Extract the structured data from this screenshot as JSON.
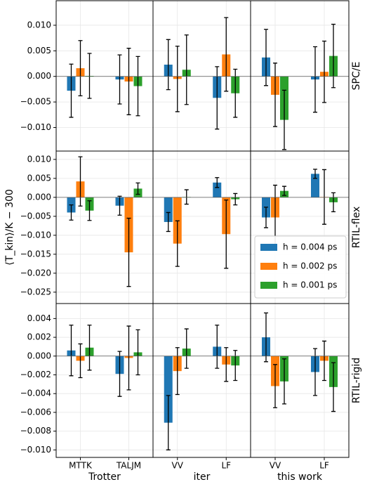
{
  "chart_data": [
    {
      "type": "bar",
      "categories": [
        null,
        null
      ],
      "ylim": [
        -0.0146,
        0.0148
      ],
      "yticks": [
        {
          "value": -0.01,
          "label": "−0.010"
        },
        {
          "value": -0.005,
          "label": "−0.005"
        },
        {
          "value": 0,
          "label": "0.000"
        },
        {
          "value": 0.005,
          "label": "0.005"
        },
        {
          "value": 0.01,
          "label": "0.010"
        }
      ],
      "grid": true,
      "series": [
        {
          "color": "#1f77b4",
          "values": [
            -0.0028,
            -0.0006
          ],
          "errors": [
            0.0052,
            0.0048
          ]
        },
        {
          "color": "#ff7f0e",
          "values": [
            0.0016,
            -0.001
          ],
          "errors": [
            0.0054,
            0.0065
          ]
        },
        {
          "color": "#2ca02c",
          "values": [
            0.0001,
            -0.0019
          ],
          "errors": [
            0.0044,
            0.0058
          ]
        }
      ]
    },
    {
      "type": "bar",
      "categories": [
        null,
        null
      ],
      "grid": true,
      "series": [
        {
          "color": "#1f77b4",
          "values": [
            0.0023,
            -0.0042
          ],
          "errors": [
            0.0049,
            0.0061
          ]
        },
        {
          "color": "#ff7f0e",
          "values": [
            -0.0005,
            0.0043
          ],
          "errors": [
            0.0064,
            0.0072
          ]
        },
        {
          "color": "#2ca02c",
          "values": [
            0.0013,
            -0.0033
          ],
          "errors": [
            0.0068,
            0.0047
          ]
        }
      ]
    },
    {
      "type": "bar",
      "categories": [
        null,
        null
      ],
      "grid": true,
      "row_label": "SPC/E",
      "series": [
        {
          "color": "#1f77b4",
          "values": [
            0.0037,
            -0.0006
          ],
          "errors": [
            0.0055,
            0.0064
          ]
        },
        {
          "color": "#ff7f0e",
          "values": [
            -0.0036,
            0.0009
          ],
          "errors": [
            0.0062,
            0.006
          ]
        },
        {
          "color": "#2ca02c",
          "values": [
            -0.0085,
            0.004
          ],
          "errors": [
            0.0058,
            0.0062
          ]
        }
      ]
    },
    {
      "type": "bar",
      "categories": [
        null,
        null
      ],
      "ylabel": "⟨T_kin⟩/K − 300",
      "ylim": [
        -0.028,
        0.0122
      ],
      "yticks": [
        {
          "value": -0.025,
          "label": "−0.025"
        },
        {
          "value": -0.02,
          "label": "−0.020"
        },
        {
          "value": -0.015,
          "label": "−0.015"
        },
        {
          "value": -0.01,
          "label": "−0.010"
        },
        {
          "value": -0.005,
          "label": "−0.005"
        },
        {
          "value": 0,
          "label": "0.000"
        },
        {
          "value": 0.005,
          "label": "0.005"
        },
        {
          "value": 0.01,
          "label": "0.010"
        }
      ],
      "grid": true,
      "series": [
        {
          "color": "#1f77b4",
          "values": [
            -0.004,
            -0.0022
          ],
          "errors": [
            0.002,
            0.0025
          ]
        },
        {
          "color": "#ff7f0e",
          "values": [
            0.0042,
            -0.0145
          ],
          "errors": [
            0.0065,
            0.009
          ]
        },
        {
          "color": "#2ca02c",
          "values": [
            -0.0035,
            0.0023
          ],
          "errors": [
            0.0026,
            0.0015
          ]
        }
      ]
    },
    {
      "type": "bar",
      "categories": [
        null,
        null
      ],
      "grid": true,
      "series": [
        {
          "color": "#1f77b4",
          "values": [
            -0.0065,
            0.0039
          ],
          "errors": [
            0.0025,
            0.0013
          ]
        },
        {
          "color": "#ff7f0e",
          "values": [
            -0.0122,
            -0.0097
          ],
          "errors": [
            0.006,
            0.009
          ]
        },
        {
          "color": "#2ca02c",
          "values": [
            0.0001,
            -0.0005
          ],
          "errors": [
            0.0019,
            0.0015
          ]
        }
      ]
    },
    {
      "type": "bar",
      "categories": [
        null,
        null
      ],
      "grid": true,
      "row_label": "RTIL-flex",
      "legend": "lower right",
      "series": [
        {
          "name": "h = 0.004 ps",
          "color": "#1f77b4",
          "values": [
            -0.0053,
            0.0062
          ],
          "errors": [
            0.0027,
            0.0012
          ]
        },
        {
          "name": "h = 0.002 ps",
          "color": "#ff7f0e",
          "values": [
            -0.0053,
            0.0001
          ],
          "errors": [
            0.0085,
            0.0072
          ]
        },
        {
          "name": "h = 0.001 ps",
          "color": "#2ca02c",
          "values": [
            0.0017,
            -0.0013
          ],
          "errors": [
            0.0012,
            0.0025
          ]
        }
      ]
    },
    {
      "type": "bar",
      "categories": [
        "MTTK",
        "TALJM"
      ],
      "xlabel": "Trotter",
      "ylim": [
        -0.0108,
        0.0056
      ],
      "yticks": [
        {
          "value": -0.01,
          "label": "−0.010"
        },
        {
          "value": -0.008,
          "label": "−0.008"
        },
        {
          "value": -0.006,
          "label": "−0.006"
        },
        {
          "value": -0.004,
          "label": "−0.004"
        },
        {
          "value": -0.002,
          "label": "−0.002"
        },
        {
          "value": 0,
          "label": "0.000"
        },
        {
          "value": 0.002,
          "label": "0.002"
        },
        {
          "value": 0.004,
          "label": "0.004"
        }
      ],
      "grid": true,
      "series": [
        {
          "color": "#1f77b4",
          "values": [
            0.0006,
            -0.0019
          ],
          "errors": [
            0.0027,
            0.0024
          ]
        },
        {
          "color": "#ff7f0e",
          "values": [
            -0.0005,
            -0.0002
          ],
          "errors": [
            0.0018,
            0.0034
          ]
        },
        {
          "color": "#2ca02c",
          "values": [
            0.0009,
            0.0004
          ],
          "errors": [
            0.0024,
            0.0024
          ]
        }
      ]
    },
    {
      "type": "bar",
      "categories": [
        "VV",
        "LF"
      ],
      "xlabel": "iter",
      "grid": true,
      "series": [
        {
          "color": "#1f77b4",
          "values": [
            -0.0071,
            0.001
          ],
          "errors": [
            0.0029,
            0.0023
          ]
        },
        {
          "color": "#ff7f0e",
          "values": [
            -0.0016,
            -0.0009
          ],
          "errors": [
            0.0025,
            0.0018
          ]
        },
        {
          "color": "#2ca02c",
          "values": [
            0.0008,
            -0.001
          ],
          "errors": [
            0.0021,
            0.0016
          ]
        }
      ]
    },
    {
      "type": "bar",
      "categories": [
        "VV",
        "LF"
      ],
      "xlabel": "this work",
      "grid": true,
      "row_label": "RTIL-rigid",
      "series": [
        {
          "color": "#1f77b4",
          "values": [
            0.002,
            -0.0017
          ],
          "errors": [
            0.0026,
            0.0025
          ]
        },
        {
          "color": "#ff7f0e",
          "values": [
            -0.0032,
            -0.0005
          ],
          "errors": [
            0.0023,
            0.0021
          ]
        },
        {
          "color": "#2ca02c",
          "values": [
            -0.0027,
            -0.0033
          ],
          "errors": [
            0.0024,
            0.0026
          ]
        }
      ]
    }
  ]
}
